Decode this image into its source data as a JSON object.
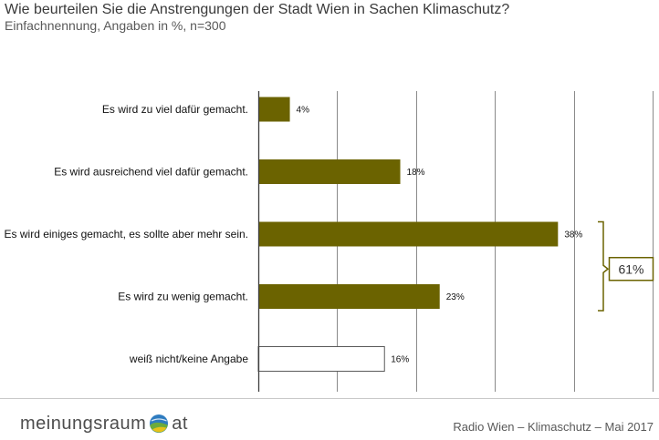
{
  "chart_data": {
    "type": "bar",
    "orientation": "horizontal",
    "title": "Wie beurteilen Sie die Anstrengungen der Stadt Wien in Sachen Klimaschutz?",
    "subtitle": "Einfachnennung, Angaben in %, n=300",
    "categories": [
      "Es wird zu viel dafür gemacht.",
      "Es wird ausreichend viel dafür gemacht.",
      "Es wird einiges gemacht, es sollte aber mehr sein.",
      "Es wird zu wenig gemacht.",
      "weiß nicht/keine Angabe"
    ],
    "values": [
      4,
      18,
      38,
      23,
      16
    ],
    "data_labels": [
      "4%",
      "18%",
      "38%",
      "23%",
      "16%"
    ],
    "bar_colors": [
      "#6b6300",
      "#6b6300",
      "#6b6300",
      "#6b6300",
      "#ffffff"
    ],
    "bar_outlines": [
      "none",
      "none",
      "none",
      "none",
      "#595959"
    ],
    "xlim": [
      0,
      50
    ],
    "x_grid_step": 10,
    "grid": true,
    "group_annotation": {
      "spans": [
        2,
        3
      ],
      "label": "61%",
      "color": "#6b6300"
    }
  },
  "footer": {
    "logo_text": "meinungsraum",
    "logo_icon": "globe-icon",
    "logo_suffix": "at",
    "source": "Radio Wien – Klimaschutz – Mai 2017"
  }
}
